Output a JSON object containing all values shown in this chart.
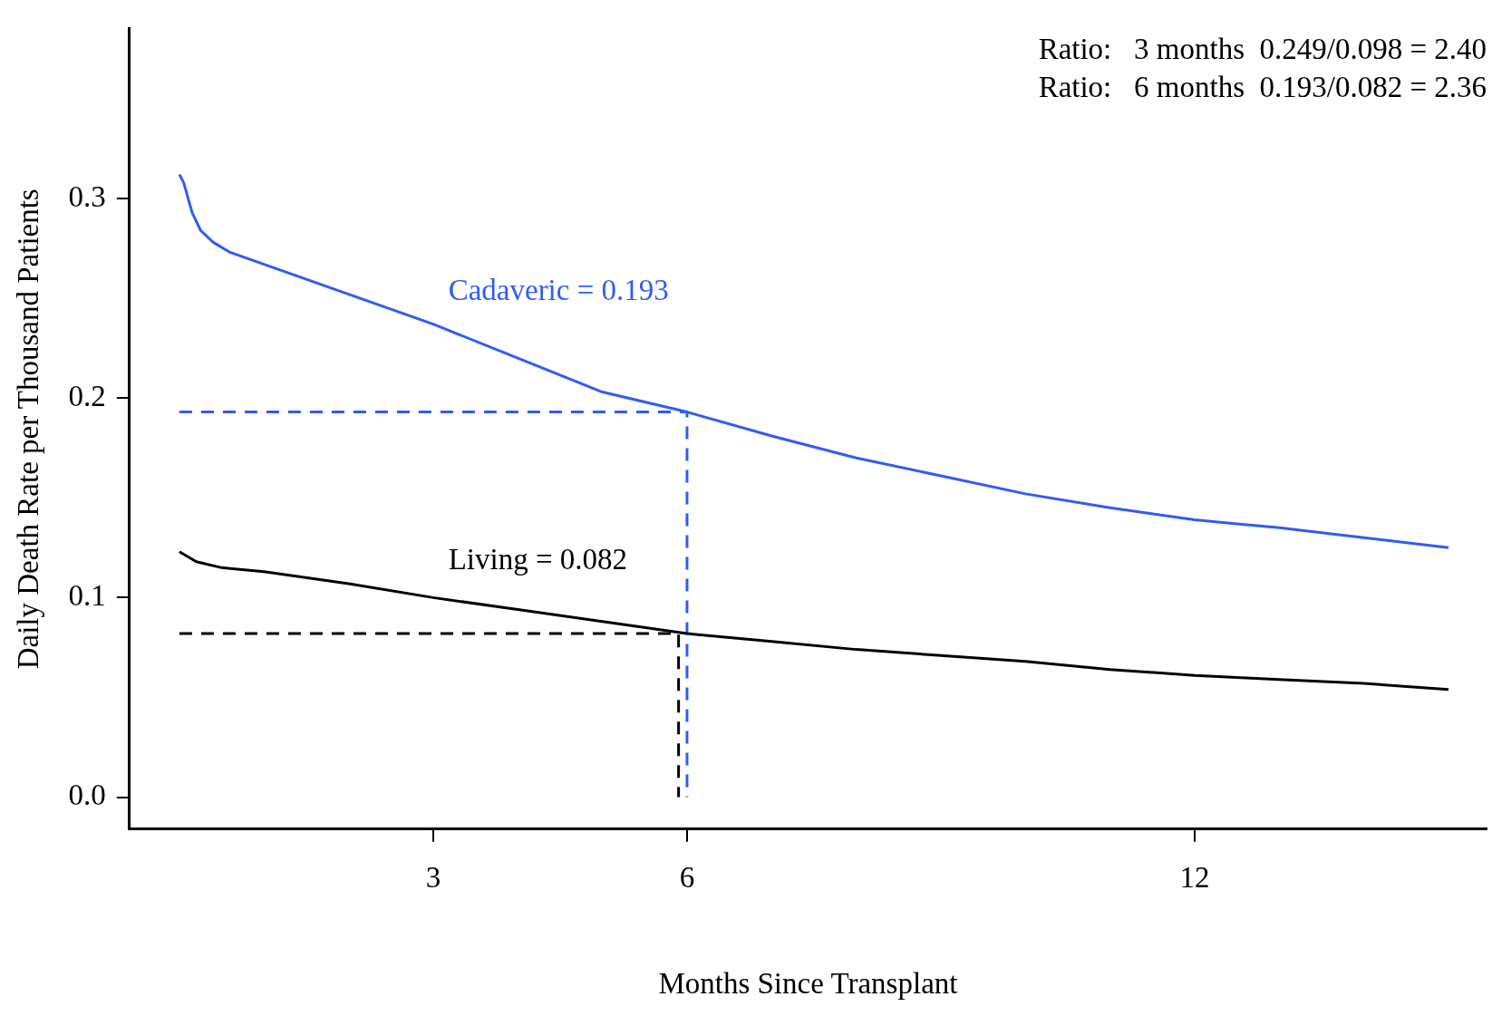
{
  "chart_data": {
    "type": "line",
    "xlabel": "Months Since Transplant",
    "ylabel": "Daily Death Rate per Thousand Patients",
    "xlim": [
      -0.59,
      15.45
    ],
    "xticks": [
      3,
      6,
      12
    ],
    "ylim": [
      -0.016,
      0.385
    ],
    "yticks": [
      {
        "value": 0,
        "label": "0.0"
      },
      {
        "value": 0.1,
        "label": "0.1"
      },
      {
        "value": 0.2,
        "label": "0.2"
      },
      {
        "value": 0.3,
        "label": "0.3"
      }
    ],
    "grid": false,
    "marker": "none",
    "line_style": "solid",
    "series": [
      {
        "name": "Cadaveric = 0.193",
        "color": "#2f5df2",
        "x": [
          0,
          0.05,
          0.15,
          0.25,
          0.4,
          0.6,
          1,
          2,
          3,
          4,
          5,
          6,
          7,
          8,
          9,
          10,
          11,
          12,
          12.5,
          13,
          14,
          15
        ],
        "values": [
          0.312,
          0.308,
          0.293,
          0.284,
          0.278,
          0.273,
          0.267,
          0.252,
          0.237,
          0.22,
          0.203,
          0.193,
          0.181,
          0.17,
          0.161,
          0.152,
          0.145,
          0.139,
          0.137,
          0.135,
          0.13,
          0.125
        ]
      },
      {
        "name": "Living = 0.082",
        "color": "#000000",
        "x": [
          0,
          0.2,
          0.5,
          1,
          2,
          3,
          4,
          5,
          6,
          7,
          8,
          9,
          10,
          11,
          12,
          13,
          14,
          15
        ],
        "values": [
          0.123,
          0.118,
          0.115,
          0.113,
          0.107,
          0.1,
          0.094,
          0.088,
          0.082,
          0.078,
          0.074,
          0.071,
          0.068,
          0.064,
          0.061,
          0.059,
          0.057,
          0.054
        ]
      },
      {
        "color": "#2f5df2",
        "line_style": "dashed",
        "x": [
          0,
          6,
          6
        ],
        "values": [
          0.193,
          0.193,
          0
        ]
      },
      {
        "color": "#000000",
        "line_style": "dashed",
        "x": [
          0,
          5.9,
          5.9
        ],
        "values": [
          0.082,
          0.082,
          0
        ]
      }
    ],
    "annotations": [
      "Ratio:   3 months  0.249/0.098 = 2.40",
      "Ratio:   6 months  0.193/0.082 = 2.36"
    ]
  }
}
